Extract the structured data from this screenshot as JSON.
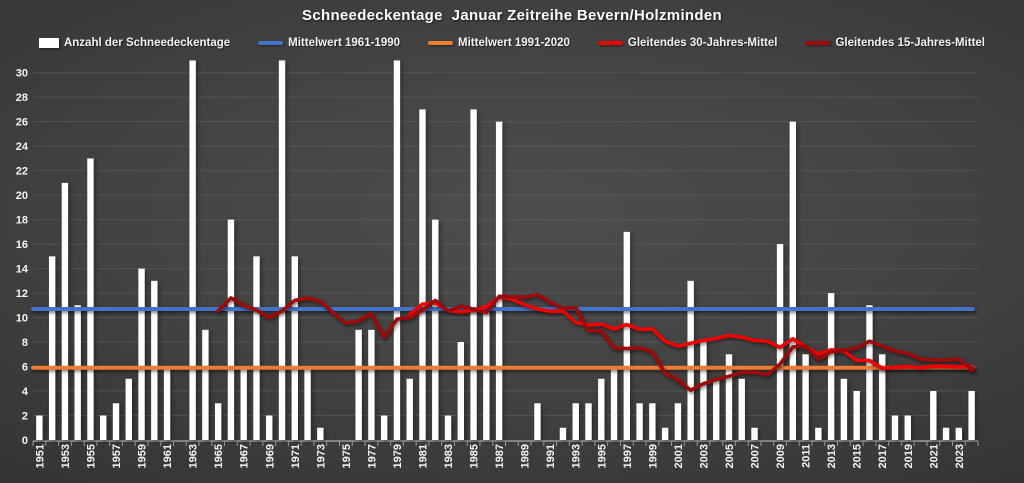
{
  "title": "Schneedeckentage  Januar Zeitreihe Bevern/Holzminden",
  "legend": [
    {
      "label": "Anzahl der Schneedeckentage",
      "type": "bar",
      "color": "#ffffff"
    },
    {
      "label": "Mittelwert 1961-1990",
      "type": "line",
      "color": "#4472c4"
    },
    {
      "label": "Mittelwert 1991-2020",
      "type": "line",
      "color": "#ed7d31"
    },
    {
      "label": "Gleitendes 30-Jahres-Mittel",
      "type": "line",
      "color": "#f00000"
    },
    {
      "label": "Gleitendes 15-Jahres-Mittel",
      "type": "line",
      "color": "#9e0a0a"
    }
  ],
  "chart_data": {
    "type": "bar",
    "title": "Schneedeckentage  Januar Zeitreihe Bevern/Holzminden",
    "xlabel": "",
    "ylabel": "",
    "ylim": [
      0,
      31.2
    ],
    "grid": true,
    "legend_position": "top",
    "bar_color": "#ffffff",
    "categories": [
      1951,
      1952,
      1953,
      1954,
      1955,
      1956,
      1957,
      1958,
      1959,
      1960,
      1961,
      1962,
      1963,
      1964,
      1965,
      1966,
      1967,
      1968,
      1969,
      1970,
      1971,
      1972,
      1973,
      1974,
      1975,
      1976,
      1977,
      1978,
      1979,
      1980,
      1981,
      1982,
      1983,
      1984,
      1985,
      1986,
      1987,
      1988,
      1989,
      1990,
      1991,
      1992,
      1993,
      1994,
      1995,
      1996,
      1997,
      1998,
      1999,
      2000,
      2001,
      2002,
      2003,
      2004,
      2005,
      2006,
      2007,
      2008,
      2009,
      2010,
      2011,
      2012,
      2013,
      2014,
      2015,
      2016,
      2017,
      2018,
      2019,
      2020,
      2021,
      2022,
      2023,
      2024
    ],
    "values": [
      2,
      15,
      21,
      11,
      23,
      2,
      3,
      5,
      14,
      13,
      6,
      0,
      31,
      9,
      3,
      18,
      6,
      15,
      2,
      31,
      15,
      6,
      1,
      0,
      0,
      9,
      9,
      2,
      31,
      5,
      27,
      18,
      2,
      8,
      27,
      11,
      26,
      0,
      0,
      3,
      0,
      1,
      3,
      3,
      5,
      6,
      17,
      3,
      3,
      1,
      3,
      13,
      8,
      5,
      7,
      5,
      1,
      0,
      16,
      26,
      7,
      1,
      12,
      5,
      4,
      11,
      7,
      2,
      2,
      0,
      4,
      1,
      1,
      4
    ],
    "x_tick_labels": [
      1951,
      1953,
      1955,
      1957,
      1959,
      1961,
      1963,
      1965,
      1967,
      1969,
      1971,
      1973,
      1975,
      1977,
      1979,
      1981,
      1983,
      1985,
      1987,
      1989,
      1991,
      1993,
      1995,
      1997,
      1999,
      2001,
      2003,
      2005,
      2007,
      2009,
      2011,
      2013,
      2015,
      2017,
      2019,
      2021,
      2023
    ],
    "y_ticks": [
      0,
      2,
      4,
      6,
      8,
      10,
      12,
      14,
      16,
      18,
      20,
      22,
      24,
      26,
      28,
      30
    ],
    "reference_lines": [
      {
        "name": "Mittelwert 1961-1990",
        "value": 10.7,
        "color": "#4472c4"
      },
      {
        "name": "Mittelwert 1991-2020",
        "value": 5.9,
        "color": "#ed7d31"
      }
    ],
    "moving_averages": [
      {
        "name": "Gleitendes 30-Jahres-Mittel",
        "window": 30,
        "color": "#f00000"
      },
      {
        "name": "Gleitendes 15-Jahres-Mittel",
        "window": 15,
        "color": "#9e0a0a"
      }
    ]
  }
}
